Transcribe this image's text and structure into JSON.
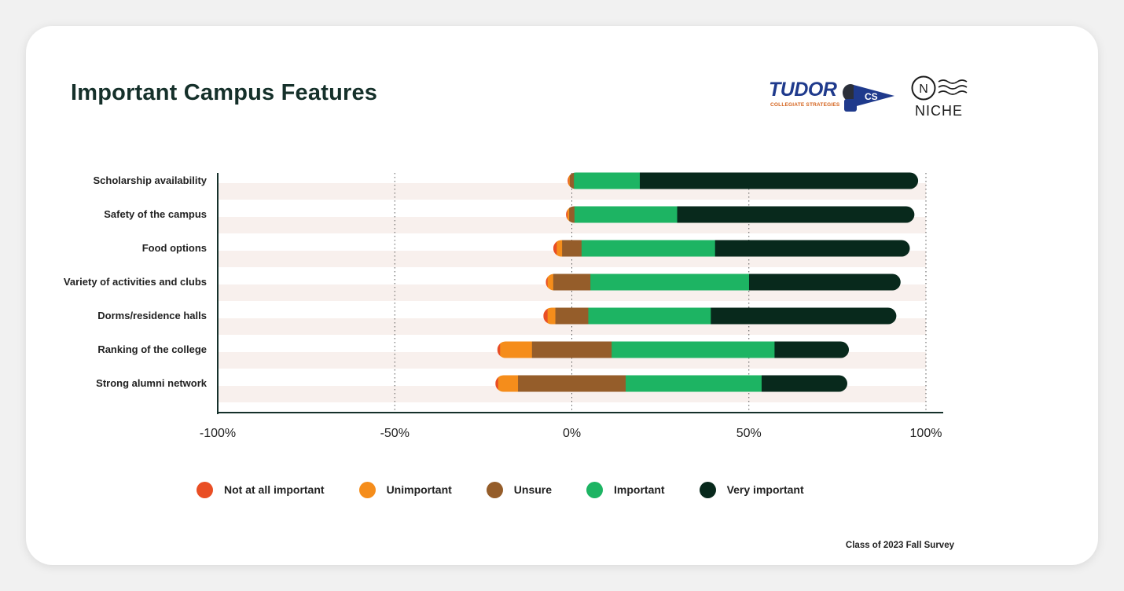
{
  "header": {
    "title": "Important Campus Features",
    "footnote": "Class of 2023 Fall Survey"
  },
  "logos": {
    "tudor_word": "TUDOR",
    "tudor_sub": "COLLEGIATE STRATEGIES",
    "tudor_badge": "CS",
    "niche_mark": "N",
    "niche_word": "NICHE"
  },
  "colors": {
    "not_at_all_important": "#e94e24",
    "unimportant": "#f58d1b",
    "unsure": "#955d2a",
    "important": "#1db463",
    "very_important": "#08291c",
    "row_band": "#f8f0ed"
  },
  "chart_data": {
    "type": "bar",
    "orientation": "horizontal",
    "stacked": true,
    "diverging": true,
    "categories": [
      "Scholarship availability",
      "Safety of the campus",
      "Food options",
      "Variety of activities and clubs",
      "Dorms/residence halls",
      "Ranking of the college",
      "Strong alumni network"
    ],
    "series": [
      {
        "name": "Not at all important",
        "values": [
          0.3,
          0.4,
          1,
          0.5,
          1.2,
          0.8,
          0.8
        ]
      },
      {
        "name": "Unimportant",
        "values": [
          0.3,
          0.5,
          1.5,
          1.6,
          2.2,
          9,
          5.6
        ]
      },
      {
        "name": "Unsure",
        "values": [
          1.2,
          1.5,
          5.5,
          10.5,
          9.3,
          22.5,
          30.4
        ]
      },
      {
        "name": "Important",
        "values": [
          18.6,
          29,
          37.7,
          44.8,
          34.6,
          46,
          38.4
        ]
      },
      {
        "name": "Very important",
        "values": [
          78.6,
          67,
          55,
          42.8,
          52.4,
          21,
          24.2
        ]
      }
    ],
    "xlim": [
      -100,
      100
    ],
    "x_ticks": [
      "-100%",
      "-50%",
      "0%",
      "50%",
      "100%"
    ],
    "x_tick_values": [
      -100,
      -50,
      0,
      50,
      100
    ],
    "grid": "vertical dotted",
    "legend_position": "bottom"
  }
}
